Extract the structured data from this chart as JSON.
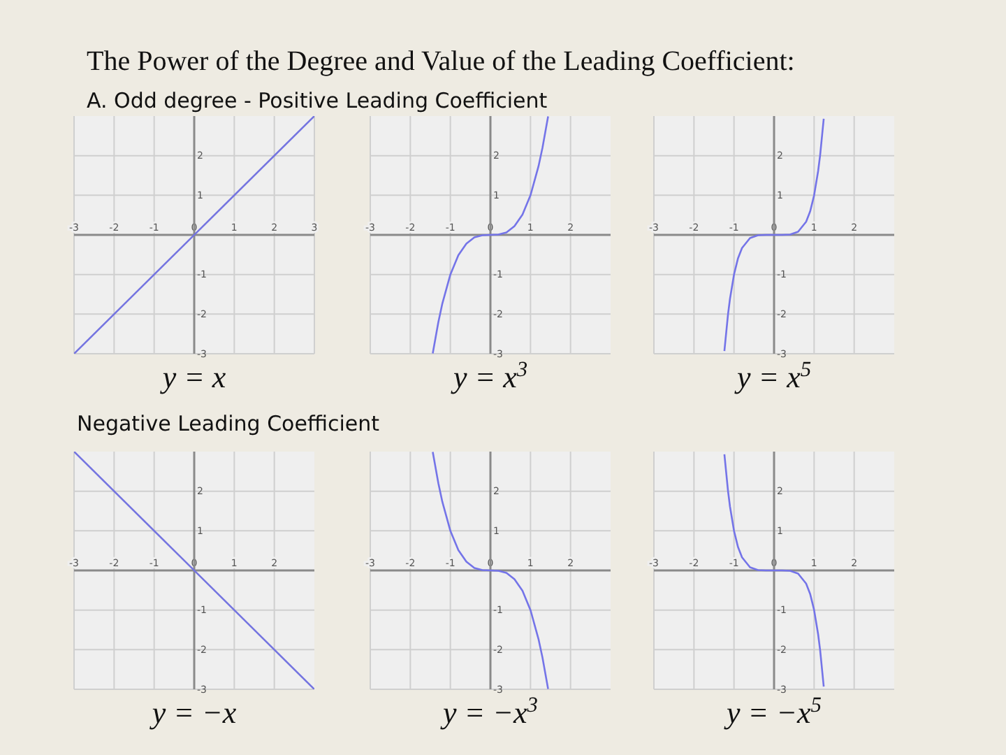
{
  "chart_data": [
    {
      "type": "line",
      "title": "y = x",
      "annotations": [
        "The Power of the Degree and Value of the Leading Coefficient:",
        "A. Odd degree - Positive  Leading Coefficient"
      ],
      "xlim": [
        -3,
        3
      ],
      "ylim": [
        -3,
        3
      ],
      "xticks": [
        -3,
        -2,
        -1,
        0,
        1,
        2,
        3
      ],
      "yticks": [
        -3,
        -2,
        -1,
        1,
        2
      ],
      "grid": true,
      "series": [
        {
          "color": "#7474e0",
          "x": [
            -3,
            3
          ],
          "values": [
            -3,
            3
          ]
        }
      ]
    },
    {
      "type": "line",
      "title": "y = x$^{3}$",
      "xlim": [
        -3,
        3
      ],
      "ylim": [
        -3,
        3
      ],
      "xticks": [
        -3,
        -2,
        -1,
        0,
        1,
        2
      ],
      "yticks": [
        -3,
        -2,
        -1,
        1,
        2
      ],
      "grid": true,
      "series": [
        {
          "color": "#7474e8",
          "x": [
            -1.44,
            -1.3,
            -1.2,
            -1,
            -0.8,
            -0.6,
            -0.4,
            -0.2,
            0,
            0.2,
            0.4,
            0.6,
            0.8,
            1,
            1.2,
            1.3,
            1.44
          ],
          "values": [
            -2.99,
            -2.2,
            -1.73,
            -1,
            -0.51,
            -0.22,
            -0.06,
            -0.01,
            0,
            0.01,
            0.06,
            0.22,
            0.51,
            1,
            1.73,
            2.2,
            2.99
          ]
        }
      ]
    },
    {
      "type": "line",
      "title": "y = x$^{5}$",
      "xlim": [
        -3,
        3
      ],
      "ylim": [
        -3,
        3
      ],
      "xticks": [
        -3,
        -2,
        -1,
        0,
        1,
        2
      ],
      "yticks": [
        -3,
        -2,
        -1,
        1,
        2
      ],
      "grid": true,
      "series": [
        {
          "color": "#7474e8",
          "x": [
            -1.24,
            -1.15,
            -1.1,
            -1,
            -0.9,
            -0.8,
            -0.6,
            -0.4,
            -0.2,
            0,
            0.2,
            0.4,
            0.6,
            0.8,
            0.9,
            1,
            1.1,
            1.15,
            1.24
          ],
          "values": [
            -2.93,
            -2.01,
            -1.61,
            -1,
            -0.59,
            -0.33,
            -0.08,
            -0.01,
            0,
            0,
            0,
            0.01,
            0.08,
            0.33,
            0.59,
            1,
            1.61,
            2.01,
            2.93
          ]
        }
      ]
    },
    {
      "type": "line",
      "title": "y = −x",
      "annotations": [
        "Negative  Leading Coefficient"
      ],
      "xlim": [
        -3,
        3
      ],
      "ylim": [
        -3,
        3
      ],
      "xticks": [
        -3,
        -2,
        -1,
        0,
        1,
        2
      ],
      "yticks": [
        -3,
        -2,
        -1,
        1,
        2
      ],
      "grid": true,
      "series": [
        {
          "color": "#7474e0",
          "x": [
            -3,
            3
          ],
          "values": [
            3,
            -3
          ]
        }
      ]
    },
    {
      "type": "line",
      "title": "y = −x$^{3}$",
      "xlim": [
        -3,
        3
      ],
      "ylim": [
        -3,
        3
      ],
      "xticks": [
        -3,
        -2,
        -1,
        0,
        1,
        2
      ],
      "yticks": [
        -3,
        -2,
        -1,
        1,
        2
      ],
      "grid": true,
      "series": [
        {
          "color": "#7474e8",
          "x": [
            -1.44,
            -1.3,
            -1.2,
            -1,
            -0.8,
            -0.6,
            -0.4,
            -0.2,
            0,
            0.2,
            0.4,
            0.6,
            0.8,
            1,
            1.2,
            1.3,
            1.44
          ],
          "values": [
            2.99,
            2.2,
            1.73,
            1,
            0.51,
            0.22,
            0.06,
            0.01,
            0,
            -0.01,
            -0.06,
            -0.22,
            -0.51,
            -1,
            -1.73,
            -2.2,
            -2.99
          ]
        }
      ]
    },
    {
      "type": "line",
      "title": "y = −x$^{5}$",
      "xlim": [
        -3,
        3
      ],
      "ylim": [
        -3,
        3
      ],
      "xticks": [
        -3,
        -2,
        -1,
        0,
        1,
        2
      ],
      "yticks": [
        -3,
        -2,
        -1,
        1,
        2
      ],
      "grid": true,
      "series": [
        {
          "color": "#7474e8",
          "x": [
            -1.24,
            -1.15,
            -1.1,
            -1,
            -0.9,
            -0.8,
            -0.6,
            -0.4,
            -0.2,
            0,
            0.2,
            0.4,
            0.6,
            0.8,
            0.9,
            1,
            1.1,
            1.15,
            1.24
          ],
          "values": [
            2.93,
            2.01,
            1.61,
            1,
            0.59,
            0.33,
            0.08,
            0.01,
            0,
            0,
            0,
            -0.01,
            -0.08,
            -0.33,
            -0.59,
            -1,
            -1.61,
            -2.01,
            -2.93
          ]
        }
      ]
    }
  ]
}
